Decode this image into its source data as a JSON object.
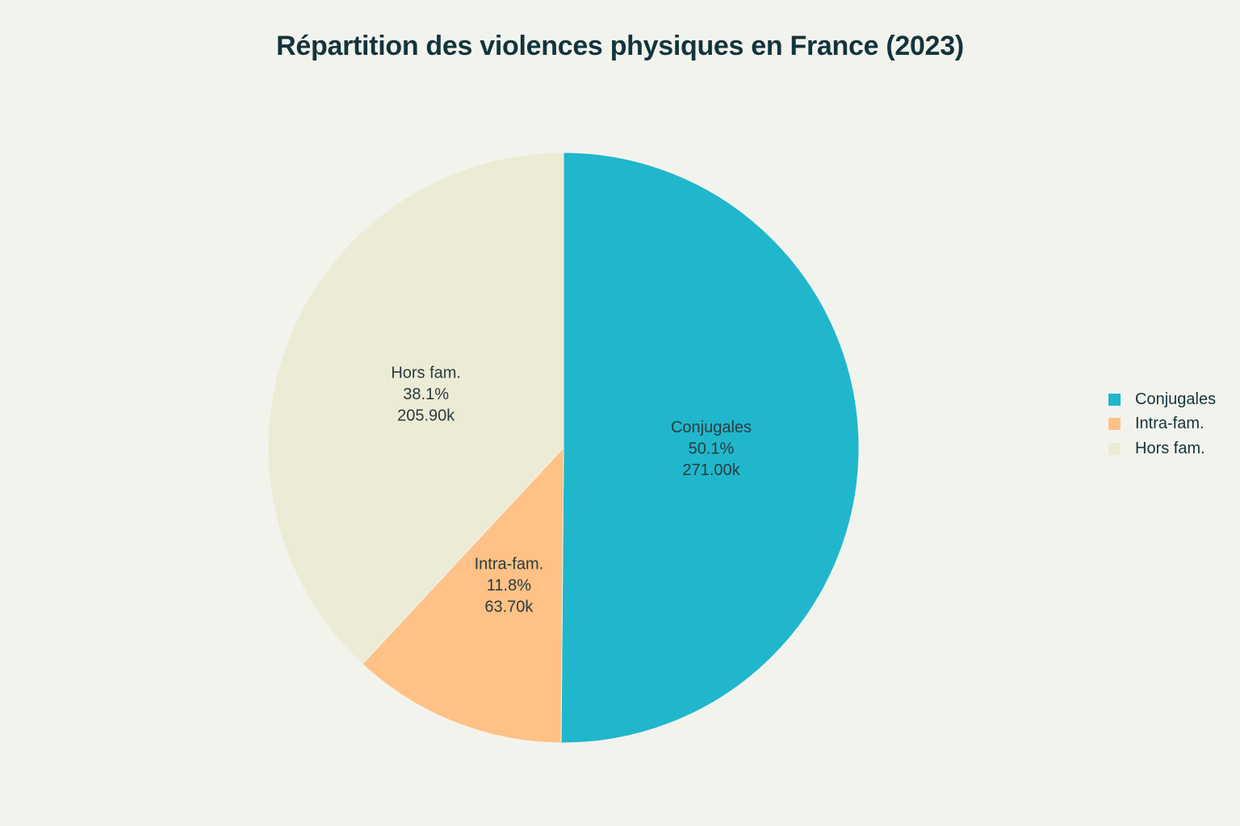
{
  "chart_data": {
    "type": "pie",
    "title": "Répartition des violences physiques en France (2023)",
    "categories": [
      "Conjugales",
      "Intra-fam.",
      "Hors fam."
    ],
    "values": [
      271000,
      63700,
      205900
    ],
    "percent_labels": [
      "50.1%",
      "11.8%",
      "38.1%"
    ],
    "value_labels": [
      "271.00k",
      "63.70k",
      "205.90k"
    ],
    "colors": [
      "#20b7cc",
      "#ffc185",
      "#ecebd5"
    ],
    "start_angle_deg": 0,
    "direction": "clockwise",
    "legend": {
      "placement": "right",
      "entries": [
        "Conjugales",
        "Intra-fam.",
        "Hors fam."
      ]
    }
  }
}
